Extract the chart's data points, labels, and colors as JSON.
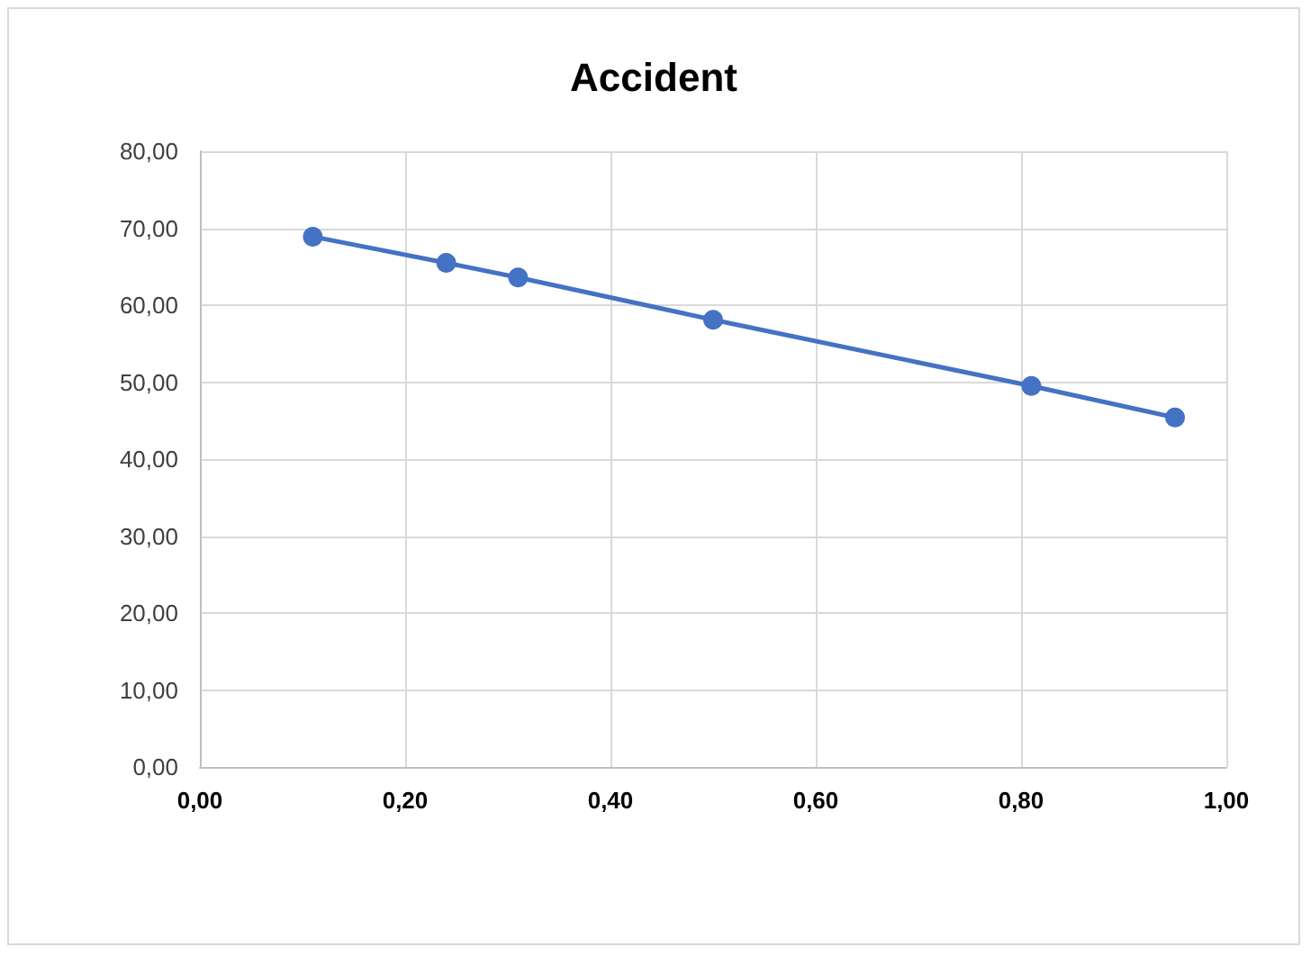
{
  "chart_data": {
    "type": "line",
    "title": "Accident",
    "x": [
      0.11,
      0.24,
      0.31,
      0.5,
      0.81,
      0.95
    ],
    "series": [
      {
        "color": "#4472c4",
        "values": [
          68.9,
          65.5,
          63.6,
          58.1,
          49.5,
          45.4
        ]
      }
    ],
    "xlim": [
      0,
      1
    ],
    "xticks": [
      {
        "value": 0,
        "label": "0,00"
      },
      {
        "value": 0.2,
        "label": "0,20"
      },
      {
        "value": 0.4,
        "label": "0,40"
      },
      {
        "value": 0.6,
        "label": "0,60"
      },
      {
        "value": 0.8,
        "label": "0,80"
      },
      {
        "value": 1,
        "label": "1,00"
      }
    ],
    "ylim": [
      0,
      80
    ],
    "yticks": [
      {
        "value": 0,
        "label": "0,00"
      },
      {
        "value": 10,
        "label": "10,00"
      },
      {
        "value": 20,
        "label": "20,00"
      },
      {
        "value": 30,
        "label": "30,00"
      },
      {
        "value": 40,
        "label": "40,00"
      },
      {
        "value": 50,
        "label": "50,00"
      },
      {
        "value": 60,
        "label": "60,00"
      },
      {
        "value": 70,
        "label": "70,00"
      },
      {
        "value": 80,
        "label": "80,00"
      }
    ],
    "grid": true,
    "marker": "circle",
    "line_style": "solid"
  }
}
